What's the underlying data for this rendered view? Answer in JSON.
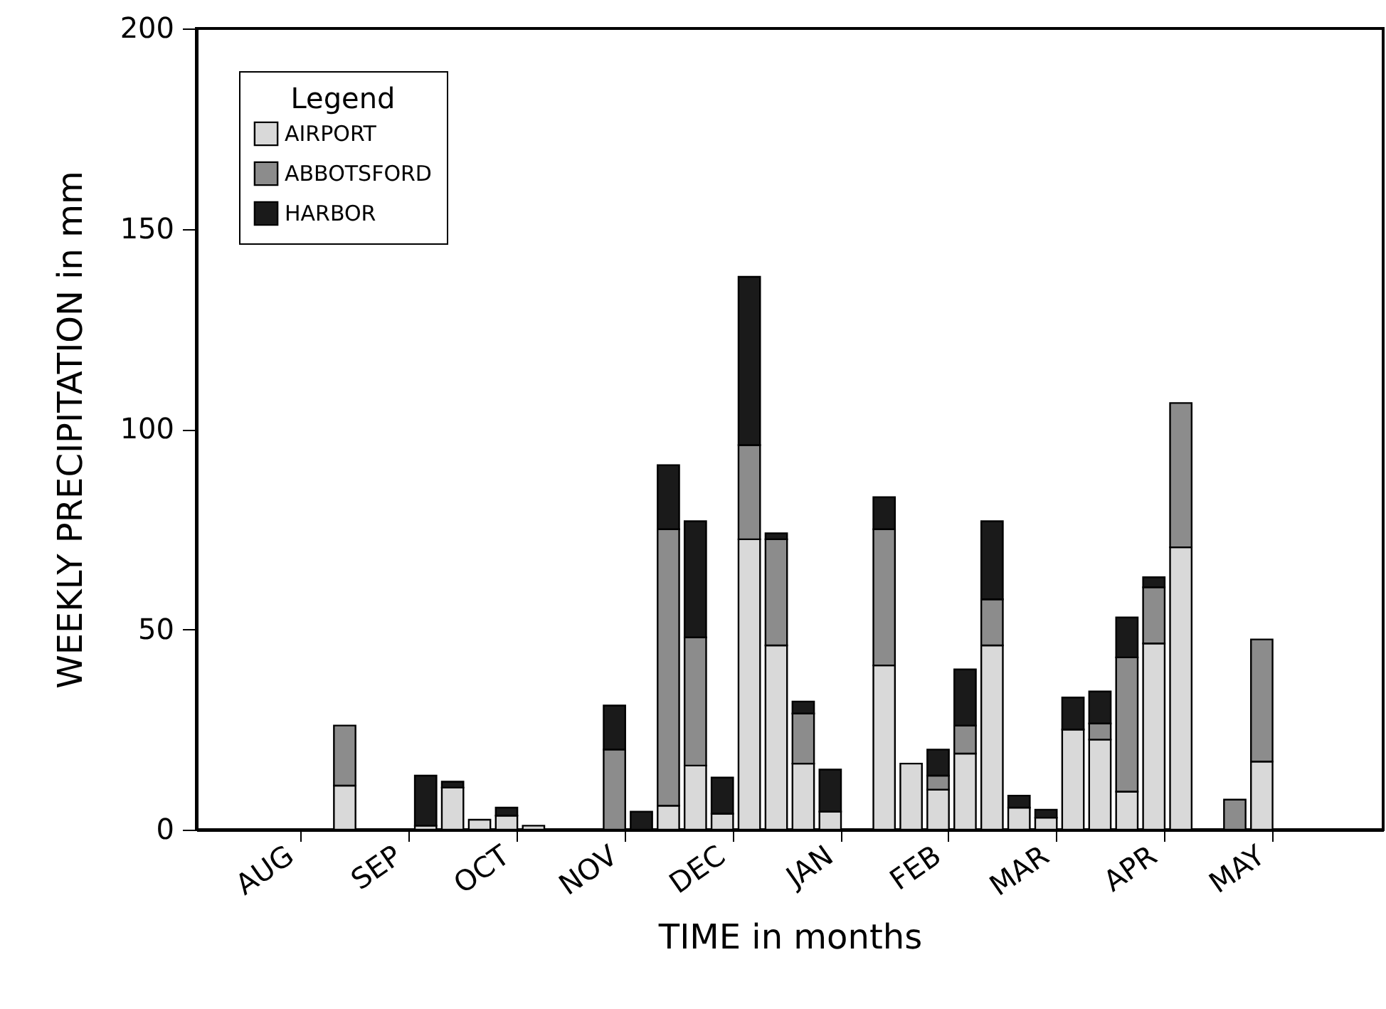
{
  "chart_data": {
    "type": "bar",
    "stacked": true,
    "xlabel": "TIME in months",
    "ylabel": "WEEKLY PRECIPITATION in mm",
    "legend_title": "Legend",
    "legend": "top left",
    "grid": false,
    "categories": [
      null,
      null,
      null,
      "AUG",
      null,
      null,
      null,
      "SEP",
      null,
      null,
      null,
      "OCT",
      null,
      null,
      null,
      "NOV",
      null,
      null,
      null,
      "DEC",
      null,
      null,
      null,
      "JAN",
      null,
      null,
      null,
      "FEB",
      null,
      null,
      null,
      "MAR",
      null,
      null,
      null,
      "APR",
      null,
      null,
      null,
      "MAY",
      null,
      null,
      null,
      null
    ],
    "series": [
      {
        "name": "AIRPORT",
        "color": "#d9d9d9",
        "values": [
          null,
          null,
          null,
          null,
          null,
          11,
          null,
          null,
          1,
          10.5,
          2.5,
          3.5,
          1,
          null,
          null,
          null,
          null,
          6,
          16,
          4,
          72.5,
          46,
          16.5,
          4.5,
          null,
          41,
          16.5,
          10,
          19,
          46,
          5.5,
          3,
          25,
          22.5,
          9.5,
          46.5,
          70.5,
          null,
          null,
          17,
          null,
          null,
          null,
          null
        ]
      },
      {
        "name": "ABBOTSFORD",
        "color": "#8c8c8c",
        "values": [
          null,
          null,
          null,
          null,
          null,
          15,
          null,
          null,
          null,
          null,
          null,
          null,
          null,
          null,
          null,
          20,
          null,
          69,
          32,
          null,
          23.5,
          26.5,
          12.5,
          null,
          null,
          34,
          null,
          3.5,
          7,
          11.5,
          null,
          null,
          null,
          4,
          33.5,
          14,
          36,
          null,
          7.5,
          30.5,
          null,
          null,
          null,
          null
        ]
      },
      {
        "name": "HARBOR",
        "color": "#1a1a1a",
        "values": [
          null,
          null,
          null,
          null,
          null,
          null,
          null,
          null,
          12.5,
          1.5,
          null,
          2,
          null,
          null,
          null,
          11,
          4.5,
          16,
          29,
          9,
          42,
          1.5,
          3,
          10.5,
          null,
          8,
          null,
          6.5,
          14,
          19.5,
          3,
          2,
          8,
          8,
          10,
          2.5,
          null,
          null,
          null,
          null,
          null,
          null,
          null,
          null
        ]
      }
    ],
    "ylim": [
      0,
      200
    ],
    "yticks": [
      0,
      50,
      100,
      150,
      200
    ]
  }
}
